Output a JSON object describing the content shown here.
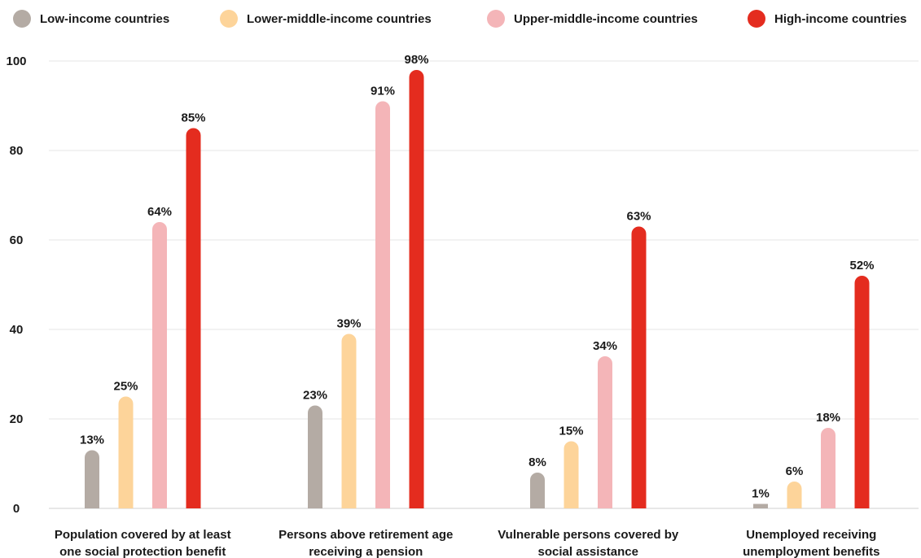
{
  "chart_data": {
    "type": "bar",
    "categories": [
      "Population covered by at least one social protection benefit",
      "Persons above retirement age receiving a pension",
      "Vulnerable persons covered by social assistance",
      "Unemployed receiving unemployment benefits"
    ],
    "category_lines": [
      [
        "Population covered by at least",
        "one social protection benefit"
      ],
      [
        "Persons above retirement age",
        "receiving a pension"
      ],
      [
        "Vulnerable persons covered by",
        "social assistance"
      ],
      [
        "Unemployed receiving",
        "unemployment benefits"
      ]
    ],
    "series": [
      {
        "name": "Low-income countries",
        "color": "#b4aba4",
        "values": [
          13,
          23,
          8,
          1
        ]
      },
      {
        "name": "Lower-middle-income countries",
        "color": "#fdd49a",
        "values": [
          25,
          39,
          15,
          6
        ]
      },
      {
        "name": "Upper-middle-income countries",
        "color": "#f4b5b8",
        "values": [
          64,
          91,
          34,
          18
        ]
      },
      {
        "name": "High-income countries",
        "color": "#e42c1f",
        "values": [
          85,
          98,
          63,
          52
        ]
      }
    ],
    "data_labels": [
      [
        "13%",
        "23%",
        "8%",
        "1%"
      ],
      [
        "25%",
        "39%",
        "15%",
        "6%"
      ],
      [
        "64%",
        "91%",
        "34%",
        "18%"
      ],
      [
        "85%",
        "98%",
        "63%",
        "52%"
      ]
    ],
    "yticks": [
      "0",
      "20",
      "40",
      "60",
      "80",
      "100"
    ],
    "ylim": [
      0,
      100
    ],
    "grid": true,
    "legend_position": "top"
  }
}
